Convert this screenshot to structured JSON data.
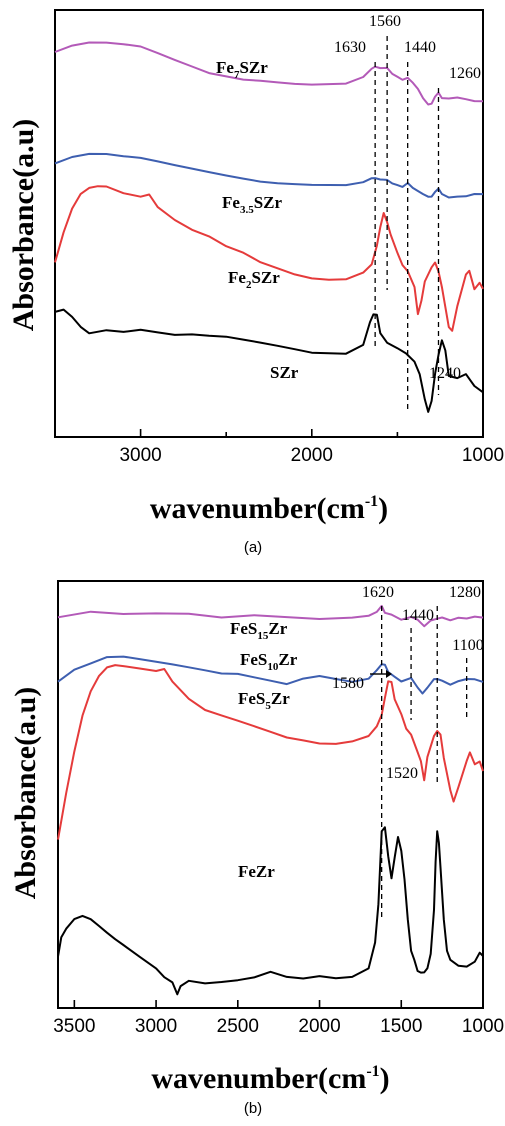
{
  "chart_data": [
    {
      "type": "line",
      "panel_caption": "(a)",
      "xlabel": "wavenumber(cm",
      "xlabel_sup": "-1",
      "xlabel_tail": ")",
      "ylabel": "Absorbance(a.u)",
      "xlim": [
        3500,
        1000
      ],
      "x_ticks": [
        3000,
        2000,
        1000
      ],
      "x_tick_labels": [
        "3000",
        "2000",
        "1000"
      ],
      "minor_ticks": [
        3500,
        2500,
        1500
      ],
      "peaks": [
        {
          "x": 1630,
          "label": "1630"
        },
        {
          "x": 1560,
          "label": "1560"
        },
        {
          "x": 1440,
          "label": "1440"
        },
        {
          "x": 1260,
          "label": "1260"
        },
        {
          "x": 1240,
          "label": "1240"
        }
      ],
      "series": [
        {
          "name": "Fe7SZr",
          "label_main": "Fe",
          "label_sub": "7",
          "label_tail": "SZr",
          "color": "#b35ab8",
          "x": [
            3500,
            3400,
            3300,
            3200,
            3100,
            3000,
            2900,
            2800,
            2700,
            2600,
            2500,
            2400,
            2300,
            2200,
            2100,
            2000,
            1900,
            1800,
            1700,
            1650,
            1630,
            1600,
            1560,
            1530,
            1500,
            1470,
            1440,
            1410,
            1380,
            1350,
            1320,
            1300,
            1280,
            1260,
            1240,
            1200,
            1150,
            1100,
            1050,
            1000
          ],
          "y": [
            6.7,
            6.8,
            6.85,
            6.85,
            6.83,
            6.8,
            6.7,
            6.6,
            6.5,
            6.4,
            6.35,
            6.3,
            6.28,
            6.25,
            6.22,
            6.2,
            6.2,
            6.2,
            6.3,
            6.45,
            6.5,
            6.48,
            6.45,
            6.35,
            6.3,
            6.25,
            6.28,
            6.2,
            6.1,
            5.95,
            5.85,
            5.9,
            6.0,
            6.05,
            6.0,
            5.95,
            5.98,
            5.97,
            5.95,
            5.95
          ]
        },
        {
          "name": "Fe3.5SZr",
          "label_main": "Fe",
          "label_sub": "3.5",
          "label_tail": "SZr",
          "color": "#3e5fb0",
          "x": [
            3500,
            3400,
            3300,
            3200,
            3100,
            3000,
            2900,
            2800,
            2700,
            2600,
            2500,
            2400,
            2300,
            2200,
            2100,
            2000,
            1900,
            1800,
            1700,
            1650,
            1630,
            1600,
            1560,
            1530,
            1500,
            1470,
            1440,
            1410,
            1380,
            1350,
            1320,
            1300,
            1280,
            1260,
            1240,
            1200,
            1150,
            1100,
            1050,
            1000
          ],
          "y": [
            4.9,
            5.0,
            5.05,
            5.05,
            5.02,
            5.0,
            4.95,
            4.9,
            4.85,
            4.8,
            4.75,
            4.7,
            4.65,
            4.62,
            4.6,
            4.58,
            4.57,
            4.56,
            4.6,
            4.68,
            4.7,
            4.68,
            4.64,
            4.58,
            4.55,
            4.52,
            4.58,
            4.5,
            4.45,
            4.4,
            4.36,
            4.4,
            4.46,
            4.5,
            4.45,
            4.35,
            4.38,
            4.4,
            4.45,
            4.45
          ]
        },
        {
          "name": "Fe2SZr",
          "label_main": "Fe",
          "label_sub": "2",
          "label_tail": "SZr",
          "color": "#e53b3b",
          "x": [
            3500,
            3450,
            3400,
            3350,
            3300,
            3250,
            3200,
            3100,
            3000,
            2950,
            2900,
            2800,
            2700,
            2600,
            2500,
            2400,
            2300,
            2200,
            2100,
            2000,
            1900,
            1800,
            1700,
            1650,
            1620,
            1600,
            1580,
            1560,
            1540,
            1500,
            1470,
            1440,
            1400,
            1380,
            1360,
            1340,
            1300,
            1280,
            1260,
            1240,
            1200,
            1180,
            1150,
            1100,
            1080,
            1050,
            1020,
            1000
          ],
          "y": [
            3.3,
            3.8,
            4.2,
            4.45,
            4.55,
            4.57,
            4.55,
            4.45,
            4.4,
            4.42,
            4.2,
            4.0,
            3.85,
            3.75,
            3.6,
            3.5,
            3.35,
            3.25,
            3.15,
            3.08,
            3.05,
            3.05,
            3.15,
            3.3,
            3.6,
            3.9,
            4.1,
            4.0,
            3.75,
            3.5,
            3.3,
            3.2,
            2.9,
            2.5,
            2.7,
            3.0,
            3.25,
            3.3,
            3.2,
            2.9,
            2.3,
            2.2,
            2.6,
            3.1,
            3.2,
            2.9,
            3.0,
            2.9
          ]
        },
        {
          "name": "SZr",
          "label_main": "SZr",
          "label_sub": "",
          "label_tail": "",
          "color": "#000000",
          "x": [
            3500,
            3450,
            3400,
            3350,
            3300,
            3200,
            3100,
            3000,
            2900,
            2800,
            2700,
            2600,
            2500,
            2400,
            2300,
            2200,
            2100,
            2000,
            1900,
            1800,
            1700,
            1660,
            1640,
            1620,
            1600,
            1560,
            1500,
            1450,
            1400,
            1370,
            1340,
            1320,
            1300,
            1280,
            1260,
            1240,
            1220,
            1200,
            1150,
            1100,
            1050,
            1000
          ],
          "y": [
            2.5,
            2.55,
            2.45,
            2.3,
            2.2,
            2.25,
            2.22,
            2.25,
            2.2,
            2.15,
            2.15,
            2.12,
            2.1,
            2.05,
            2.0,
            1.95,
            1.9,
            1.85,
            1.85,
            1.85,
            2.0,
            2.35,
            2.5,
            2.45,
            2.2,
            2.0,
            1.95,
            1.85,
            1.7,
            1.5,
            1.1,
            0.9,
            1.1,
            1.5,
            1.85,
            2.05,
            1.9,
            1.5,
            1.45,
            1.5,
            1.3,
            1.2
          ]
        }
      ]
    },
    {
      "type": "line",
      "panel_caption": "(b)",
      "xlabel": "wavenumber(cm",
      "xlabel_sup": "-1",
      "xlabel_tail": ")",
      "ylabel": "Absorbance(a.u)",
      "xlim": [
        3600,
        1000
      ],
      "x_ticks": [
        3500,
        3000,
        2500,
        2000,
        1500,
        1000
      ],
      "x_tick_labels": [
        "3500",
        "3000",
        "2500",
        "2000",
        "1500",
        "1000"
      ],
      "minor_ticks": [],
      "peaks": [
        {
          "x": 1620,
          "label": "1620"
        },
        {
          "x": 1440,
          "label": "1440"
        },
        {
          "x": 1280,
          "label": "1280"
        },
        {
          "x": 1100,
          "label": "1100"
        },
        {
          "x": 1580,
          "label": "1580"
        },
        {
          "x": 1520,
          "label": "1520"
        }
      ],
      "series": [
        {
          "name": "FeS15Zr",
          "label_main": "FeS",
          "label_sub": "15",
          "label_tail": "Zr",
          "color": "#b35ab8",
          "x": [
            3600,
            3400,
            3200,
            3000,
            2800,
            2600,
            2400,
            2200,
            2000,
            1800,
            1700,
            1650,
            1620,
            1600,
            1560,
            1500,
            1440,
            1400,
            1360,
            1320,
            1280,
            1250,
            1200,
            1150,
            1100,
            1050,
            1000
          ],
          "y": [
            7.0,
            7.05,
            7.05,
            7.05,
            7.02,
            7.0,
            7.0,
            6.98,
            6.97,
            6.95,
            6.98,
            7.05,
            7.15,
            7.08,
            7.0,
            6.95,
            7.0,
            6.92,
            6.85,
            6.9,
            6.98,
            7.0,
            6.95,
            6.98,
            6.95,
            6.97,
            6.95
          ]
        },
        {
          "name": "FeS10Zr",
          "label_main": "FeS",
          "label_sub": "10",
          "label_tail": "Zr",
          "color": "#3e5fb0",
          "x": [
            3600,
            3500,
            3400,
            3300,
            3200,
            3100,
            3000,
            2900,
            2800,
            2700,
            2600,
            2500,
            2400,
            2300,
            2200,
            2100,
            2000,
            1900,
            1800,
            1700,
            1650,
            1620,
            1600,
            1580,
            1540,
            1500,
            1440,
            1400,
            1370,
            1340,
            1300,
            1280,
            1250,
            1200,
            1150,
            1100,
            1050,
            1000
          ],
          "y": [
            5.9,
            6.1,
            6.2,
            6.3,
            6.3,
            6.25,
            6.2,
            6.15,
            6.1,
            6.05,
            6.0,
            6.0,
            5.95,
            5.9,
            5.85,
            5.95,
            6.0,
            5.95,
            5.9,
            5.95,
            6.1,
            6.2,
            6.15,
            6.05,
            5.95,
            5.9,
            5.92,
            5.8,
            5.7,
            5.8,
            5.9,
            5.95,
            5.92,
            5.85,
            5.9,
            5.92,
            5.9,
            5.85
          ]
        },
        {
          "name": "FeS5Zr",
          "label_main": "FeS",
          "label_sub": "5",
          "label_tail": "Zr",
          "color": "#e53b3b",
          "x": [
            3600,
            3550,
            3500,
            3450,
            3400,
            3350,
            3300,
            3250,
            3200,
            3100,
            3000,
            2950,
            2900,
            2800,
            2700,
            2600,
            2500,
            2400,
            2300,
            2200,
            2100,
            2000,
            1900,
            1800,
            1700,
            1650,
            1620,
            1600,
            1580,
            1560,
            1540,
            1500,
            1470,
            1440,
            1400,
            1380,
            1360,
            1340,
            1300,
            1280,
            1260,
            1240,
            1200,
            1180,
            1150,
            1100,
            1080,
            1050,
            1020,
            1000
          ],
          "y": [
            3.2,
            4.0,
            4.7,
            5.3,
            5.7,
            5.95,
            6.1,
            6.15,
            6.15,
            6.1,
            6.05,
            6.1,
            5.9,
            5.6,
            5.4,
            5.3,
            5.2,
            5.1,
            5.0,
            4.9,
            4.85,
            4.8,
            4.8,
            4.85,
            4.95,
            5.1,
            5.3,
            5.6,
            5.9,
            5.85,
            5.6,
            5.3,
            5.05,
            4.95,
            4.7,
            4.5,
            4.2,
            4.6,
            4.95,
            5.05,
            4.95,
            4.6,
            4.0,
            3.85,
            4.1,
            4.55,
            4.65,
            4.45,
            4.5,
            4.35
          ]
        },
        {
          "name": "FeZr",
          "label_main": "FeZr",
          "label_sub": "",
          "label_tail": "",
          "color": "#000000",
          "x": [
            3600,
            3580,
            3550,
            3500,
            3450,
            3400,
            3350,
            3300,
            3250,
            3200,
            3100,
            3000,
            2950,
            2900,
            2870,
            2850,
            2800,
            2700,
            2600,
            2500,
            2400,
            2300,
            2200,
            2100,
            2000,
            1900,
            1800,
            1700,
            1660,
            1640,
            1620,
            1600,
            1580,
            1560,
            1540,
            1520,
            1500,
            1480,
            1460,
            1440,
            1420,
            1400,
            1380,
            1360,
            1340,
            1320,
            1300,
            1290,
            1280,
            1270,
            1260,
            1240,
            1220,
            1200,
            1150,
            1100,
            1050,
            1020,
            1000
          ],
          "y": [
            1.2,
            1.5,
            1.65,
            1.8,
            1.85,
            1.8,
            1.7,
            1.6,
            1.5,
            1.4,
            1.2,
            1.0,
            0.85,
            0.75,
            0.55,
            0.65,
            0.75,
            0.7,
            0.72,
            0.75,
            0.8,
            0.9,
            0.82,
            0.8,
            0.85,
            0.82,
            0.85,
            1.0,
            1.4,
            2.1,
            3.3,
            3.4,
            2.9,
            2.5,
            2.9,
            3.2,
            3.0,
            2.5,
            1.8,
            1.3,
            1.1,
            0.95,
            0.9,
            0.9,
            1.0,
            1.2,
            2.0,
            2.8,
            3.3,
            3.1,
            2.7,
            1.8,
            1.3,
            1.1,
            1.0,
            1.0,
            1.1,
            1.25,
            1.2
          ]
        }
      ]
    }
  ]
}
